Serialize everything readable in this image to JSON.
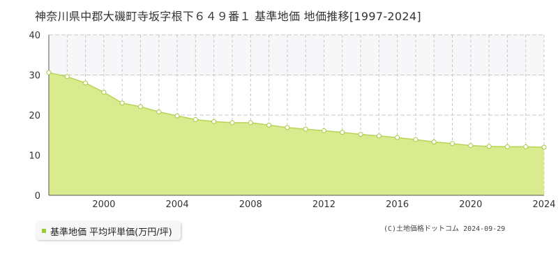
{
  "title": "神奈川県中郡大磯町寺坂字根下６４９番１ 基準地価 地価推移[1997-2024]",
  "legend": {
    "label": "基準地価 平均坪単価(万円/坪)"
  },
  "copyright": "(C)土地価格ドットコム 2024-09-29",
  "colors": {
    "area_fill": "#d9ea8f",
    "line": "#b8d456",
    "marker_fill": "#ffffff",
    "marker_stroke": "#a8c83c",
    "grid": "#c8c8c8",
    "band_fill": "#f7f7f9",
    "axis_text": "#333333",
    "legend_swatch": "#9acd32"
  },
  "chart_data": {
    "type": "area",
    "x": [
      1997,
      1998,
      1999,
      2000,
      2001,
      2002,
      2003,
      2004,
      2005,
      2006,
      2007,
      2008,
      2009,
      2010,
      2011,
      2012,
      2013,
      2014,
      2015,
      2016,
      2017,
      2018,
      2019,
      2020,
      2021,
      2022,
      2023,
      2024
    ],
    "series": [
      {
        "name": "基準地価 平均坪単価(万円/坪)",
        "values": [
          30.6,
          29.6,
          28.0,
          25.7,
          23.0,
          22.1,
          20.8,
          19.8,
          18.9,
          18.4,
          18.1,
          18.1,
          17.5,
          16.9,
          16.5,
          16.1,
          15.7,
          15.2,
          14.8,
          14.4,
          13.9,
          13.3,
          12.9,
          12.4,
          12.2,
          12.1,
          12.1,
          12.0
        ]
      }
    ],
    "x_ticks": [
      2000,
      2004,
      2008,
      2012,
      2016,
      2020,
      2024
    ],
    "y_ticks": [
      0,
      10,
      20,
      30,
      40
    ],
    "xlim": [
      1997,
      2024
    ],
    "ylim": [
      0,
      40
    ],
    "grid": true,
    "band": [
      30,
      40
    ],
    "legend_position": "bottom-left"
  }
}
